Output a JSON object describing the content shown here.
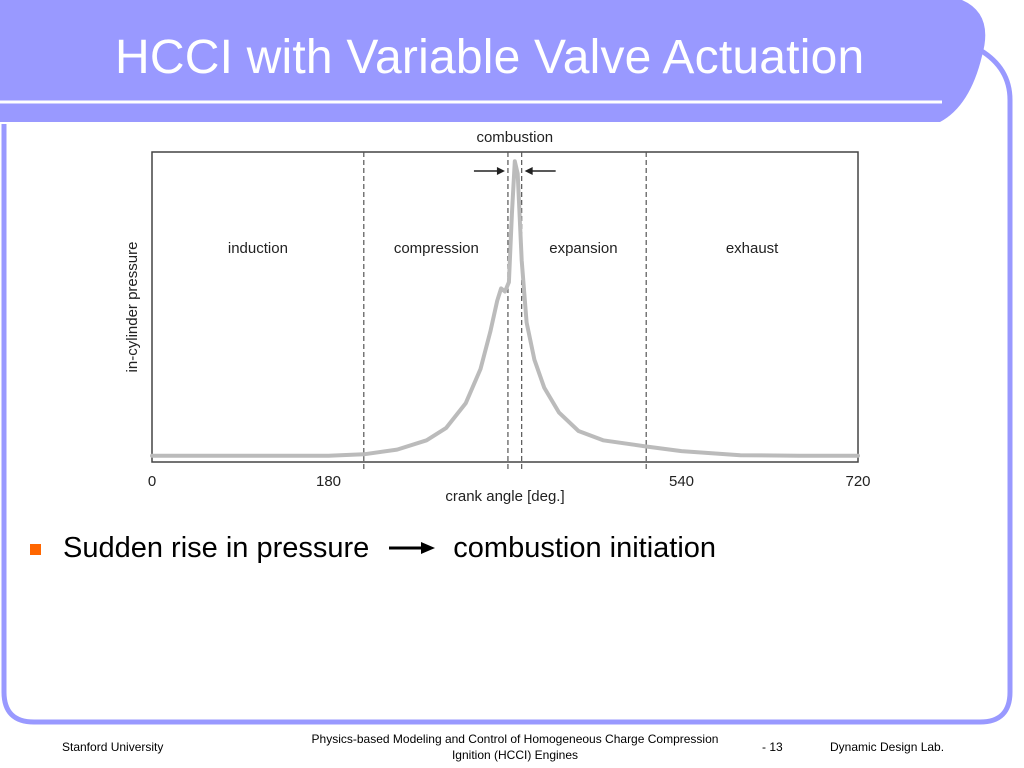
{
  "slide": {
    "title": "HCCI with Variable Valve Actuation",
    "theme": {
      "banner": "#9999ff",
      "outline": "#9999ff",
      "bullet": "#ff6600"
    }
  },
  "bullet": {
    "text_before": "Sudden rise in pressure",
    "arrow_icon": "right-arrow",
    "text_after": "combustion initiation"
  },
  "footer": {
    "left": "Stanford University",
    "center_line1": "Physics-based Modeling and Control of Homogeneous Charge Compression",
    "center_line2": "Ignition (HCCI) Engines",
    "page": "- 13",
    "right": "Dynamic Design Lab."
  },
  "chart_data": {
    "type": "line",
    "title": "",
    "xlabel": "crank angle [deg.]",
    "ylabel": "in-cylinder pressure",
    "xlim": [
      0,
      720
    ],
    "ylim": [
      0,
      1
    ],
    "x_ticks": [
      {
        "value": 0,
        "label": "0"
      },
      {
        "value": 180,
        "label": "180"
      },
      {
        "value": 540,
        "label": "540"
      },
      {
        "value": 720,
        "label": "720"
      }
    ],
    "phase_boundaries": [
      216,
      363,
      377,
      504
    ],
    "phases": [
      {
        "label": "induction",
        "x": 108
      },
      {
        "label": "compression",
        "x": 290
      },
      {
        "label": "expansion",
        "x": 440
      },
      {
        "label": "exhaust",
        "x": 612
      }
    ],
    "annotation": {
      "text": "combustion",
      "from": 363,
      "to": 377
    },
    "series": [
      {
        "color": "#bbbbbb",
        "points": [
          [
            0,
            0.02
          ],
          [
            60,
            0.02
          ],
          [
            120,
            0.02
          ],
          [
            180,
            0.02
          ],
          [
            216,
            0.025
          ],
          [
            250,
            0.04
          ],
          [
            280,
            0.07
          ],
          [
            300,
            0.11
          ],
          [
            320,
            0.19
          ],
          [
            335,
            0.3
          ],
          [
            345,
            0.42
          ],
          [
            352,
            0.52
          ],
          [
            356,
            0.56
          ],
          [
            360,
            0.55
          ],
          [
            364,
            0.58
          ],
          [
            367,
            0.8
          ],
          [
            370,
            0.97
          ],
          [
            373,
            0.93
          ],
          [
            377,
            0.65
          ],
          [
            382,
            0.45
          ],
          [
            390,
            0.33
          ],
          [
            400,
            0.24
          ],
          [
            415,
            0.16
          ],
          [
            435,
            0.1
          ],
          [
            460,
            0.07
          ],
          [
            504,
            0.05
          ],
          [
            540,
            0.035
          ],
          [
            600,
            0.022
          ],
          [
            660,
            0.02
          ],
          [
            720,
            0.02
          ]
        ]
      }
    ],
    "grid": false,
    "legend": "none"
  }
}
